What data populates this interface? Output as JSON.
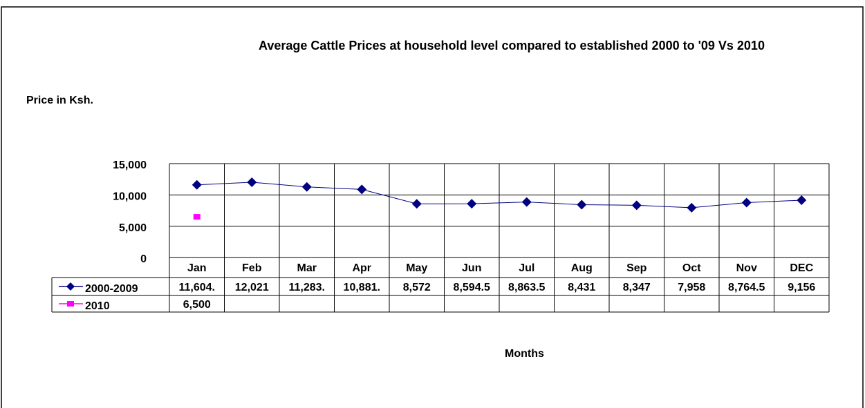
{
  "chart_data": {
    "type": "line",
    "title": "Average Cattle Prices at household level compared to established 2000 to '09 Vs 2010",
    "y_label": "Price in Ksh.",
    "x_label": "Months",
    "categories": [
      "Jan",
      "Feb",
      "Mar",
      "Apr",
      "May",
      "Jun",
      "Jul",
      "Aug",
      "Sep",
      "Oct",
      "Nov",
      "DEC"
    ],
    "series": [
      {
        "name": "2000-2009",
        "color": "#000080",
        "marker": "diamond",
        "values": [
          11604,
          12021,
          11283,
          10881,
          8572,
          8594.5,
          8863.5,
          8431,
          8347,
          7958,
          8764.5,
          9156
        ],
        "value_labels": [
          "11,604.",
          "12,021",
          "11,283.",
          "10,881.",
          "8,572",
          "8,594.5",
          "8,863.5",
          "8,431",
          "8,347",
          "7,958",
          "8,764.5",
          "9,156"
        ]
      },
      {
        "name": "2010",
        "color": "#ff00ff",
        "marker": "square",
        "values": [
          6500,
          null,
          null,
          null,
          null,
          null,
          null,
          null,
          null,
          null,
          null,
          null
        ],
        "value_labels": [
          "6,500",
          null,
          null,
          null,
          null,
          null,
          null,
          null,
          null,
          null,
          null,
          null
        ]
      }
    ],
    "ylim": [
      0,
      15000
    ],
    "yticks": [
      {
        "value": 0,
        "label": "0"
      },
      {
        "value": 5000,
        "label": "5,000"
      },
      {
        "value": 10000,
        "label": "10,000"
      },
      {
        "value": 15000,
        "label": "15,000"
      }
    ],
    "grid": true
  }
}
